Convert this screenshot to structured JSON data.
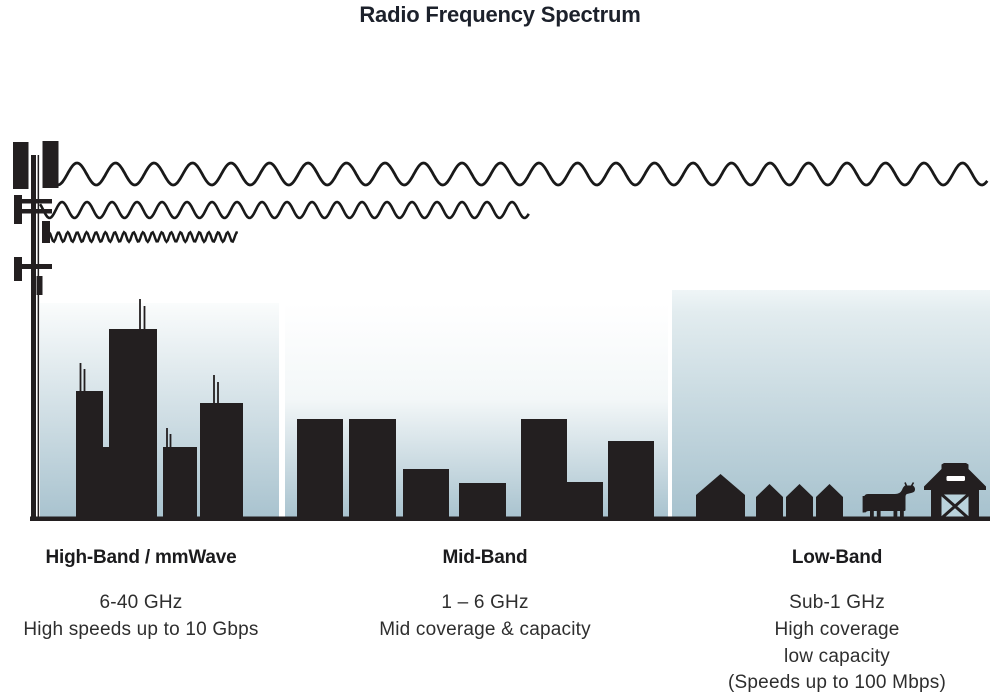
{
  "title": "Radio Frequency Spectrum",
  "colors": {
    "ink": "#231f20",
    "sky_bottom": "#a9c3cf",
    "barn_door": "#b9d3dc",
    "text": "#2e2e2e",
    "title": "#1c212b"
  },
  "transmitter": {
    "icon": "cell-tower-icon"
  },
  "waves": [
    {
      "name": "long-wavelength-wave"
    },
    {
      "name": "medium-wavelength-wave"
    },
    {
      "name": "short-wavelength-wave"
    }
  ],
  "bands": [
    {
      "heading": "High-Band / mmWave",
      "lines": [
        "6-40 GHz",
        "High speeds up to 10 Gbps"
      ],
      "scene": "city-skyline"
    },
    {
      "heading": "Mid-Band",
      "lines": [
        "1 – 6 GHz",
        "Mid coverage & capacity"
      ],
      "scene": "midrise-buildings"
    },
    {
      "heading": "Low-Band",
      "lines": [
        "Sub-1 GHz",
        "High coverage",
        "low capacity",
        "(Speeds up to 100 Mbps)"
      ],
      "scene": "farm-countryside"
    }
  ]
}
